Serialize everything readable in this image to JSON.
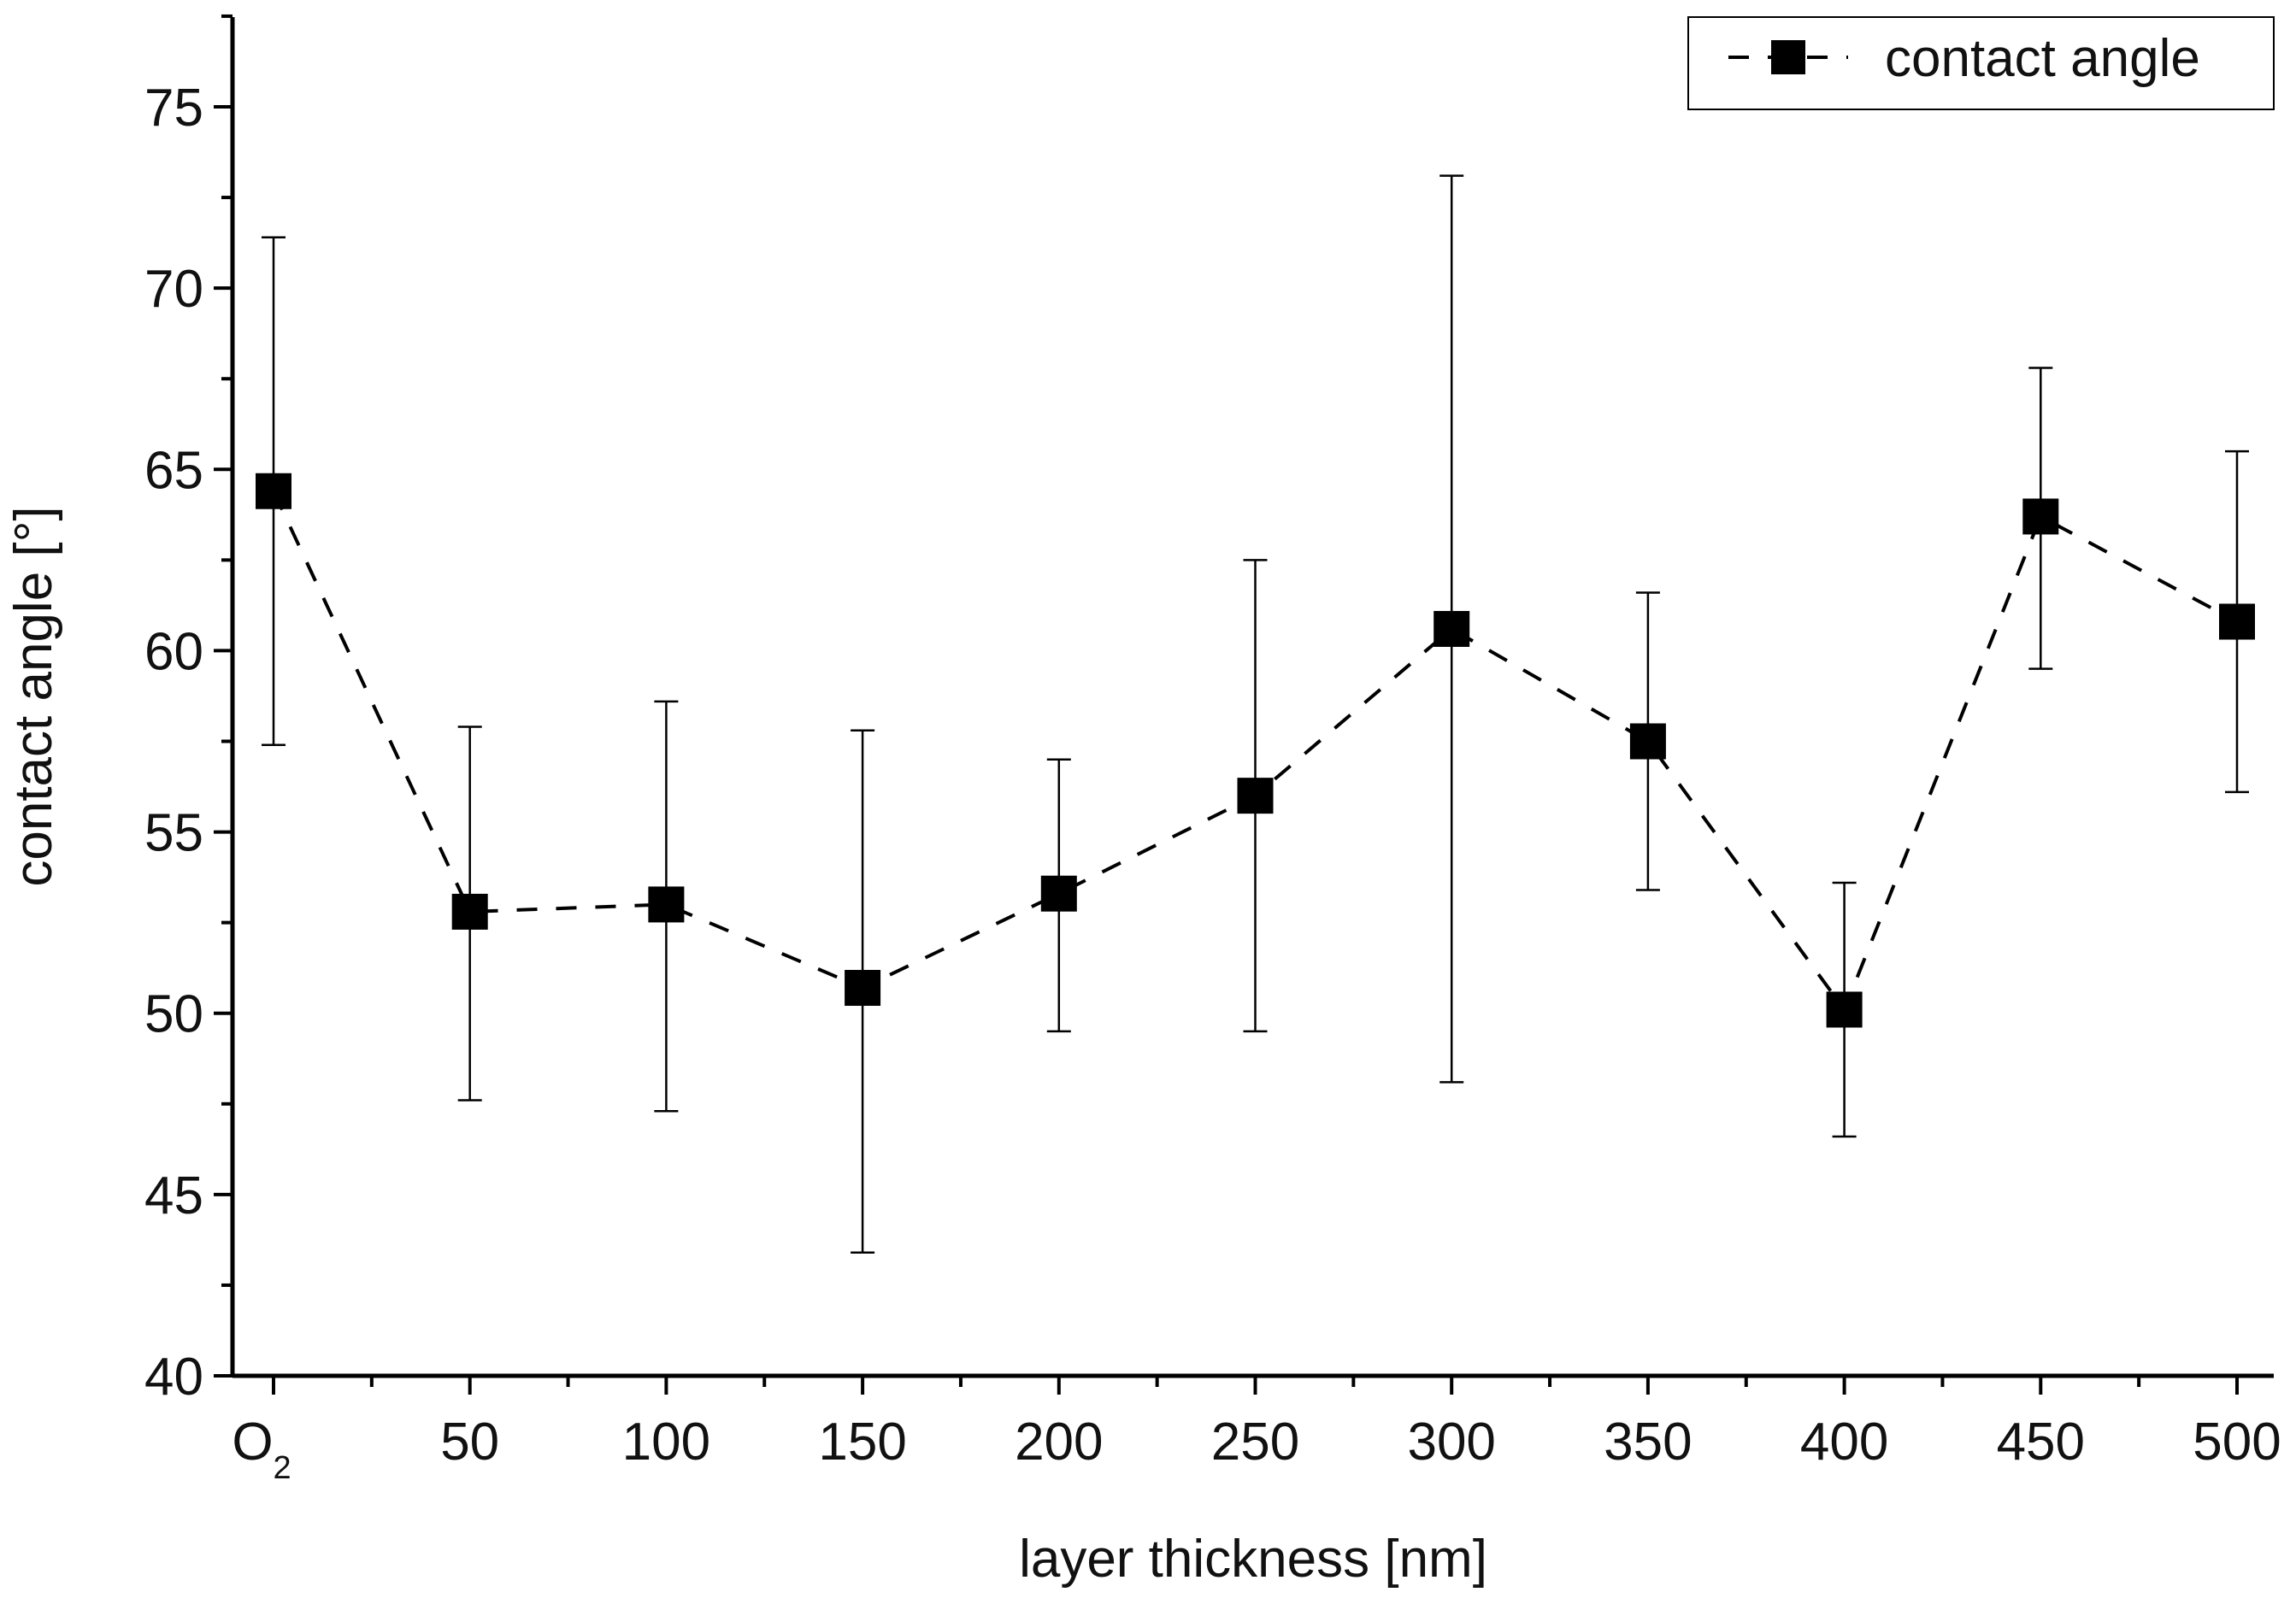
{
  "chart_data": {
    "type": "line",
    "title": "",
    "xlabel": "layer thickness [nm]",
    "ylabel": "contact angle [°]",
    "categories": [
      "O",
      "50",
      "100",
      "150",
      "200",
      "250",
      "300",
      "350",
      "400",
      "450",
      "500"
    ],
    "first_category_subscript": "2",
    "ylim": [
      40,
      77.5
    ],
    "y_ticks": [
      40,
      45,
      50,
      55,
      60,
      65,
      70,
      75
    ],
    "grid": false,
    "legend": {
      "position": "top-right",
      "label": "contact angle"
    },
    "series": [
      {
        "name": "contact angle",
        "marker": "square",
        "line_style": "dashed",
        "color": "#000000",
        "values": [
          64.4,
          52.8,
          53.0,
          50.7,
          53.3,
          56.0,
          60.6,
          57.5,
          50.1,
          63.7,
          60.8
        ],
        "err_low": [
          57.4,
          47.6,
          47.3,
          43.4,
          49.5,
          49.5,
          48.1,
          53.4,
          46.6,
          59.5,
          56.1
        ],
        "err_high": [
          71.4,
          57.9,
          58.6,
          57.8,
          57.0,
          62.5,
          73.1,
          61.6,
          53.6,
          67.8,
          65.5
        ]
      }
    ]
  }
}
